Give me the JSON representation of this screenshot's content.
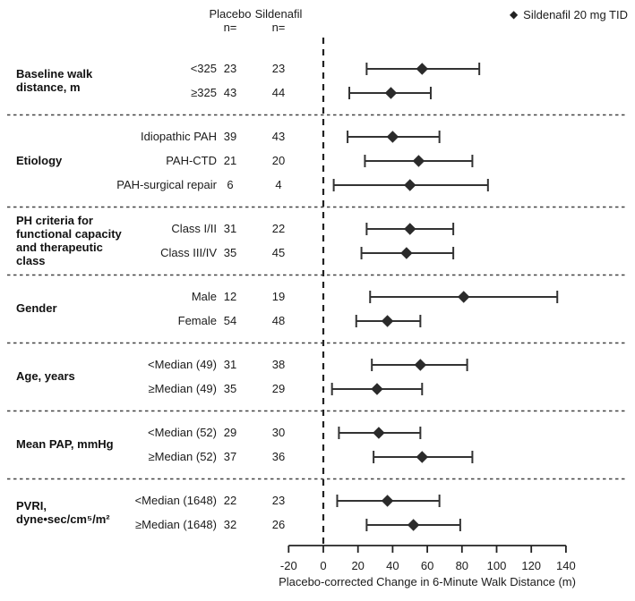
{
  "figure": {
    "legend": {
      "marker": "diamond-icon",
      "label": "Sildenafil 20 mg TID"
    },
    "columns": {
      "placebo": {
        "line1": "Placebo",
        "line2": "n="
      },
      "sildenafil": {
        "line1": "Sildenafil",
        "line2": "n="
      }
    }
  },
  "chart_data": {
    "type": "scatter",
    "subtype": "forest-plot",
    "xlabel": "Placebo-corrected Change in 6-Minute Walk Distance (m)",
    "x_ticks": [
      -20,
      0,
      20,
      40,
      60,
      80,
      100,
      120,
      140
    ],
    "xlim": [
      -20,
      140
    ],
    "zero_line": 0,
    "grid": false,
    "legend_position": "top-right",
    "colors": {
      "line": "#333333",
      "marker": "#2b2b2b",
      "text": "#1b1b1b",
      "separator": "#444444"
    },
    "sections": [
      {
        "label": [
          "Baseline walk",
          "distance, m"
        ],
        "rows": [
          {
            "category": "<325",
            "placebo_n": 23,
            "sildenafil_n": 23,
            "estimate": 57,
            "ci_low": 25,
            "ci_high": 90
          },
          {
            "category": "≥325",
            "placebo_n": 43,
            "sildenafil_n": 44,
            "estimate": 39,
            "ci_low": 15,
            "ci_high": 62
          }
        ]
      },
      {
        "label": [
          "Etiology"
        ],
        "rows": [
          {
            "category": "Idiopathic PAH",
            "placebo_n": 39,
            "sildenafil_n": 43,
            "estimate": 40,
            "ci_low": 14,
            "ci_high": 67
          },
          {
            "category": "PAH-CTD",
            "placebo_n": 21,
            "sildenafil_n": 20,
            "estimate": 55,
            "ci_low": 24,
            "ci_high": 86
          },
          {
            "category": "PAH-surgical repair",
            "placebo_n": 6,
            "sildenafil_n": 4,
            "estimate": 50,
            "ci_low": 6,
            "ci_high": 95
          }
        ]
      },
      {
        "label": [
          "PH criteria for",
          "functional capacity",
          "and therapeutic",
          "class"
        ],
        "rows": [
          {
            "category": "Class I/II",
            "placebo_n": 31,
            "sildenafil_n": 22,
            "estimate": 50,
            "ci_low": 25,
            "ci_high": 75
          },
          {
            "category": "Class III/IV",
            "placebo_n": 35,
            "sildenafil_n": 45,
            "estimate": 48,
            "ci_low": 22,
            "ci_high": 75
          }
        ]
      },
      {
        "label": [
          "Gender"
        ],
        "rows": [
          {
            "category": "Male",
            "placebo_n": 12,
            "sildenafil_n": 19,
            "estimate": 81,
            "ci_low": 27,
            "ci_high": 135
          },
          {
            "category": "Female",
            "placebo_n": 54,
            "sildenafil_n": 48,
            "estimate": 37,
            "ci_low": 19,
            "ci_high": 56
          }
        ]
      },
      {
        "label": [
          "Age, years"
        ],
        "rows": [
          {
            "category": "<Median (49)",
            "placebo_n": 31,
            "sildenafil_n": 38,
            "estimate": 56,
            "ci_low": 28,
            "ci_high": 83
          },
          {
            "category": "≥Median (49)",
            "placebo_n": 35,
            "sildenafil_n": 29,
            "estimate": 31,
            "ci_low": 5,
            "ci_high": 57
          }
        ]
      },
      {
        "label": [
          "Mean PAP, mmHg"
        ],
        "rows": [
          {
            "category": "<Median (52)",
            "placebo_n": 29,
            "sildenafil_n": 30,
            "estimate": 32,
            "ci_low": 9,
            "ci_high": 56
          },
          {
            "category": "≥Median (52)",
            "placebo_n": 37,
            "sildenafil_n": 36,
            "estimate": 57,
            "ci_low": 29,
            "ci_high": 86
          }
        ]
      },
      {
        "label": [
          "PVRI,",
          "dyne•sec/cm⁵/m²"
        ],
        "rows": [
          {
            "category": "<Median (1648)",
            "placebo_n": 22,
            "sildenafil_n": 23,
            "estimate": 37,
            "ci_low": 8,
            "ci_high": 67
          },
          {
            "category": "≥Median (1648)",
            "placebo_n": 32,
            "sildenafil_n": 26,
            "estimate": 52,
            "ci_low": 25,
            "ci_high": 79
          }
        ]
      }
    ]
  }
}
